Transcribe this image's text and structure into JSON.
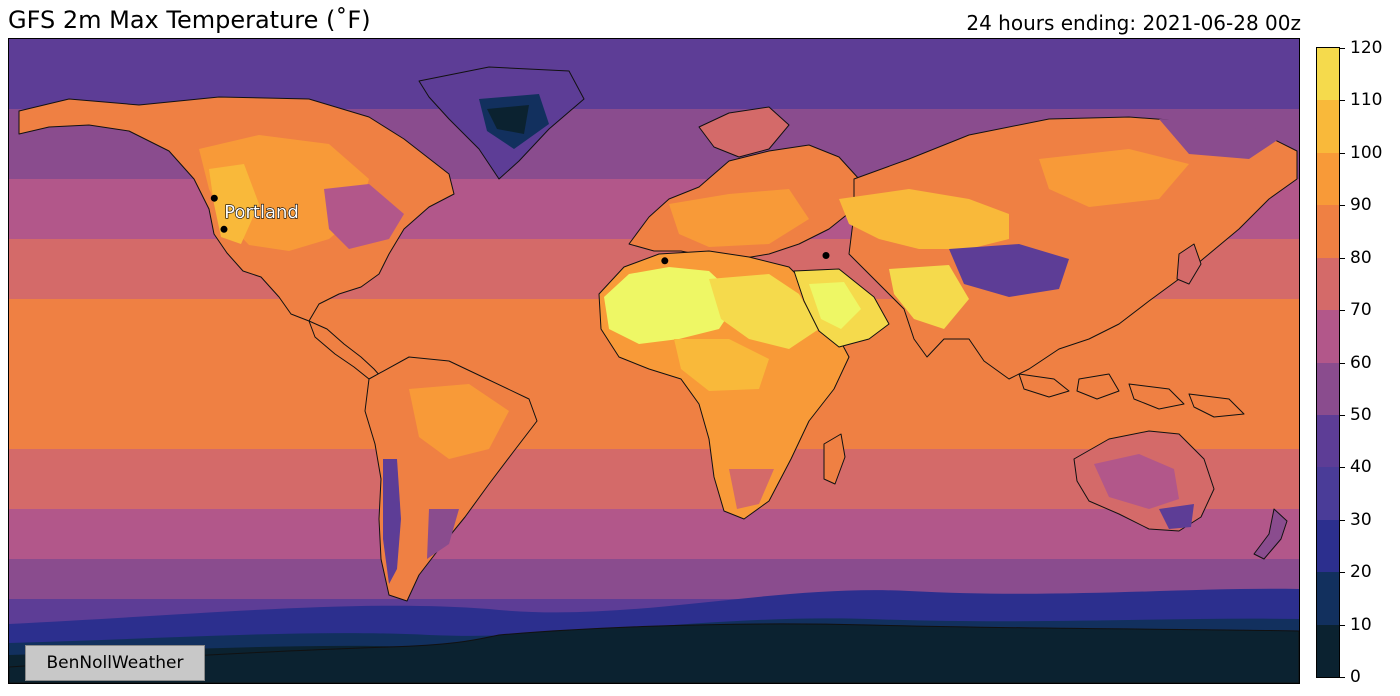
{
  "header": {
    "title": "GFS 2m Max Temperature (˚F)",
    "valid_time": "24 hours ending: 2021-06-28 00z"
  },
  "map": {
    "cities": [
      {
        "name": "Portland",
        "lon": -122.7,
        "lat": 45.5,
        "labeled": true
      },
      {
        "name": "",
        "lon": -120.0,
        "lat": 36.8,
        "labeled": false
      },
      {
        "name": "",
        "lon": 3.0,
        "lat": 28.0,
        "labeled": false
      },
      {
        "name": "",
        "lon": 48.0,
        "lat": 29.5,
        "labeled": false
      }
    ]
  },
  "colorbar": {
    "ticks": [
      "0",
      "10",
      "20",
      "30",
      "40",
      "50",
      "60",
      "70",
      "80",
      "90",
      "100",
      "110",
      "120"
    ],
    "levels": [
      0,
      10,
      20,
      30,
      40,
      50,
      60,
      70,
      80,
      90,
      100,
      110,
      120
    ],
    "colors": [
      "#0b2230",
      "#12305e",
      "#2c2f8e",
      "#4a3c98",
      "#5d3d96",
      "#8a4c8e",
      "#b2578a",
      "#d46a69",
      "#ef8043",
      "#f89a38",
      "#f9b93a",
      "#f5da4c",
      "#eef765"
    ]
  },
  "watermark": "BenNollWeather"
}
